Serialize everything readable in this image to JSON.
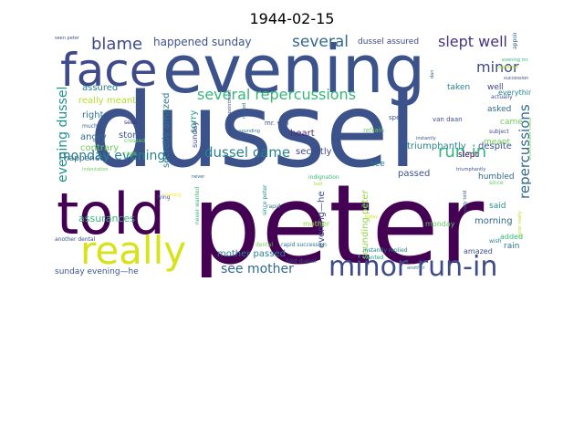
{
  "figure": {
    "title": "1944-02-15"
  },
  "word_cloud": {
    "words": [
      {
        "text": "dussel",
        "color": "#3b528b"
      },
      {
        "text": "peter",
        "color": "#440154"
      },
      {
        "text": "evening",
        "color": "#3b528b"
      },
      {
        "text": "told",
        "color": "#440154"
      },
      {
        "text": "face",
        "color": "#3e4a89"
      },
      {
        "text": "really",
        "color": "#d8e219"
      },
      {
        "text": "minor run-in",
        "color": "#3e4a89"
      },
      {
        "text": "run-in",
        "color": "#35b779"
      },
      {
        "text": "several repercussions",
        "color": "#35b779"
      },
      {
        "text": "repercussions",
        "color": "#31688e"
      },
      {
        "text": "slept well",
        "color": "#46337e"
      },
      {
        "text": "blame",
        "color": "#3e4a89"
      },
      {
        "text": "several",
        "color": "#31688e"
      },
      {
        "text": "minor",
        "color": "#3e4a89"
      },
      {
        "text": "monday evening",
        "color": "#26828e"
      },
      {
        "text": "dussel came",
        "color": "#26828e"
      },
      {
        "text": "evening dussel",
        "color": "#21918c"
      },
      {
        "text": "happened sunday",
        "color": "#3b528b"
      },
      {
        "text": "see mother",
        "color": "#31688e"
      },
      {
        "text": "dussel assured",
        "color": "#3e4a89"
      },
      {
        "text": "really meant",
        "color": "#b5de2b"
      },
      {
        "text": "assured",
        "color": "#26828e"
      },
      {
        "text": "right",
        "color": "#2a788e"
      },
      {
        "text": "angry",
        "color": "#31688e"
      },
      {
        "text": "contrary",
        "color": "#6ece58"
      },
      {
        "text": "happened",
        "color": "#31688e"
      },
      {
        "text": "assurances",
        "color": "#35b779"
      },
      {
        "text": "story",
        "color": "#3b528b"
      },
      {
        "text": "sorry",
        "color": "#1f9e89"
      },
      {
        "text": "secretly",
        "color": "#3e4a89"
      },
      {
        "text": "secretly amazed",
        "color": "#2a788e"
      },
      {
        "text": "heart",
        "color": "#482878"
      },
      {
        "text": "triumphantly",
        "color": "#26828e"
      },
      {
        "text": "passed",
        "color": "#3b528b"
      },
      {
        "text": "sounding peter",
        "color": "#90d743"
      },
      {
        "text": "mother passed",
        "color": "#26828e"
      },
      {
        "text": "evening—he",
        "color": "#3e4a89"
      },
      {
        "text": "despite",
        "color": "#3b528b"
      },
      {
        "text": "meant",
        "color": "#6ece58"
      },
      {
        "text": "humbled",
        "color": "#31688e"
      },
      {
        "text": "said",
        "color": "#21918c"
      },
      {
        "text": "morning",
        "color": "#31688e"
      },
      {
        "text": "monday",
        "color": "#5ec962"
      },
      {
        "text": "rain",
        "color": "#2a788e"
      },
      {
        "text": "added",
        "color": "#35b779"
      },
      {
        "text": "amazed",
        "color": "#3b528b"
      },
      {
        "text": "taken",
        "color": "#26828e"
      },
      {
        "text": "well",
        "color": "#3e4a89"
      },
      {
        "text": "asked",
        "color": "#31688e"
      },
      {
        "text": "came",
        "color": "#6ece58"
      },
      {
        "text": "slept",
        "color": "#440154"
      },
      {
        "text": "see",
        "color": "#2a788e"
      },
      {
        "text": "everything",
        "color": "#26828e"
      },
      {
        "text": "sunday evening—he",
        "color": "#3b528b"
      },
      {
        "text": "sunday",
        "color": "#3e4a89"
      },
      {
        "text": "mother",
        "color": "#90d743"
      },
      {
        "text": "speak",
        "color": "#3b528b"
      },
      {
        "text": "refrain",
        "color": "#6ece58"
      },
      {
        "text": "van daan",
        "color": "#3e4a89"
      },
      {
        "text": "mr. van",
        "color": "#3b528b"
      },
      {
        "text": "seen",
        "color": "#482878"
      },
      {
        "text": "much",
        "color": "#31688e"
      },
      {
        "text": "rage",
        "color": "#6ece58"
      },
      {
        "text": "crossed",
        "color": "#5ec962"
      },
      {
        "text": "indignation",
        "color": "#35b779"
      },
      {
        "text": "rapid succession",
        "color": "#2a788e"
      },
      {
        "text": "told dussel",
        "color": "#3e4a89"
      },
      {
        "text": "instantly replied",
        "color": "#26828e"
      },
      {
        "text": "really told",
        "color": "#3b528b"
      },
      {
        "text": "since peter",
        "color": "#21918c"
      },
      {
        "text": "lying",
        "color": "#3b528b"
      },
      {
        "text": "rapid",
        "color": "#2a788e"
      },
      {
        "text": "never wanted",
        "color": "#35b779"
      },
      {
        "text": "another dental",
        "color": "#3b528b"
      },
      {
        "text": "dental",
        "color": "#6ece58"
      },
      {
        "text": "wanted",
        "color": "#1f9e89"
      },
      {
        "text": "wish",
        "color": "#26828e"
      },
      {
        "text": "since",
        "color": "#5ec962"
      },
      {
        "text": "subject",
        "color": "#3e4a89"
      },
      {
        "text": "actually",
        "color": "#3b528b"
      },
      {
        "text": "appointment",
        "color": "#31688e"
      },
      {
        "text": "agitation",
        "color": "#b5de2b"
      },
      {
        "text": "succession",
        "color": "#3e4a89"
      },
      {
        "text": "evening mr.",
        "color": "#35b779"
      },
      {
        "text": "seen peter",
        "color": "#3b528b"
      },
      {
        "text": "dan",
        "color": "#31688e"
      },
      {
        "text": "mr.",
        "color": "#35b779"
      },
      {
        "text": "today",
        "color": "#d8e219"
      },
      {
        "text": "another",
        "color": "#2a788e"
      },
      {
        "text": "replied",
        "color": "#31688e"
      },
      {
        "text": "peter really",
        "color": "#b5de2b"
      },
      {
        "text": "bad",
        "color": "#b5de2b"
      },
      {
        "text": "instantly",
        "color": "#3b528b"
      },
      {
        "text": "appointment today",
        "color": "#6ece58"
      },
      {
        "text": "triumphantly",
        "color": "#3b528b"
      },
      {
        "text": "coming",
        "color": "#fde725"
      },
      {
        "text": "never",
        "color": "#31688e"
      },
      {
        "text": "dental appointment",
        "color": "#3e4a89"
      },
      {
        "text": "indentation",
        "color": "#6ece58"
      },
      {
        "text": "sounding",
        "color": "#2a788e"
      }
    ]
  }
}
